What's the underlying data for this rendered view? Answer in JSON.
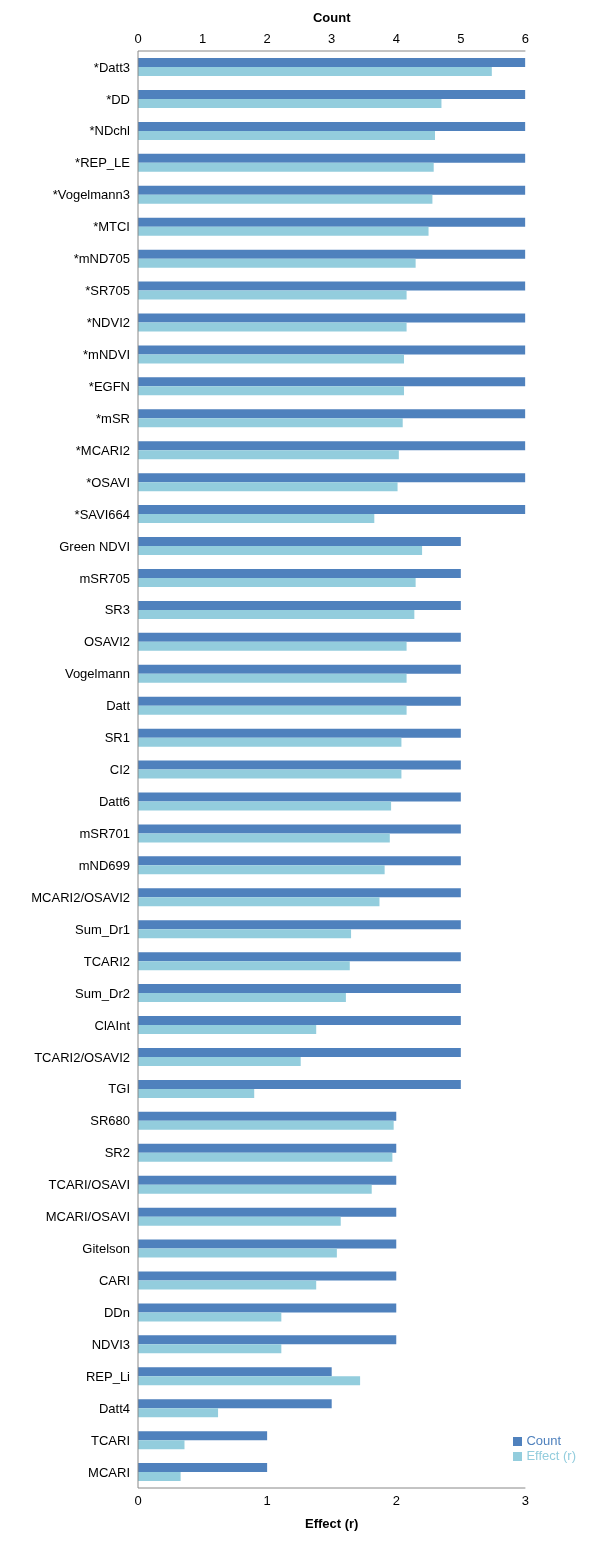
{
  "chart_data": {
    "type": "bar",
    "orientation": "horizontal",
    "xlabel": "Effect (r)",
    "x2label": "Count",
    "categories": [
      "*Datt3",
      "*DD",
      "*NDchl",
      "*REP_LE",
      "*Vogelmann3",
      "*MTCI",
      "*mND705",
      "*SR705",
      "*NDVI2",
      "*mNDVI",
      "*EGFN",
      "*mSR",
      "*MCARI2",
      "*OSAVI",
      "*SAVI664",
      "Green NDVI",
      "mSR705",
      "SR3",
      "OSAVI2",
      "Vogelmann",
      "Datt",
      "SR1",
      "CI2",
      "Datt6",
      "mSR701",
      "mND699",
      "MCARI2/OSAVI2",
      "Sum_Dr1",
      "TCARI2",
      "Sum_Dr2",
      "ClAInt",
      "TCARI2/OSAVI2",
      "TGI",
      "SR680",
      "SR2",
      "TCARI/OSAVI",
      "MCARI/OSAVI",
      "Gitelson",
      "CARI",
      "DDn",
      "NDVI3",
      "REP_Li",
      "Datt4",
      "TCARI",
      "MCARI"
    ],
    "series": [
      {
        "name": "Count",
        "color": "#4f81bd",
        "axis": "x2",
        "values": [
          6,
          6,
          6,
          6,
          6,
          6,
          6,
          6,
          6,
          6,
          6,
          6,
          6,
          6,
          6,
          5,
          5,
          5,
          5,
          5,
          5,
          5,
          5,
          5,
          5,
          5,
          5,
          5,
          5,
          5,
          5,
          5,
          5,
          4,
          4,
          4,
          4,
          4,
          4,
          4,
          4,
          3,
          3,
          2,
          2
        ]
      },
      {
        "name": "Effect (r)",
        "color": "#93cddd",
        "values": [
          2.74,
          2.35,
          2.3,
          2.29,
          2.28,
          2.25,
          2.15,
          2.08,
          2.08,
          2.06,
          2.06,
          2.05,
          2.02,
          2.01,
          1.83,
          2.2,
          2.15,
          2.14,
          2.08,
          2.08,
          2.08,
          2.04,
          2.04,
          1.96,
          1.95,
          1.91,
          1.87,
          1.65,
          1.64,
          1.61,
          1.38,
          1.26,
          0.9,
          1.98,
          1.97,
          1.81,
          1.57,
          1.54,
          1.38,
          1.11,
          1.11,
          1.72,
          0.62,
          0.36,
          0.33
        ]
      }
    ],
    "xlim": [
      0,
      3
    ],
    "xticks": [
      0,
      1,
      2,
      3
    ],
    "x2lim": [
      0,
      6
    ],
    "x2ticks": [
      0,
      1,
      2,
      3,
      4,
      5,
      6
    ],
    "legend": "bottom right",
    "grid": false
  }
}
